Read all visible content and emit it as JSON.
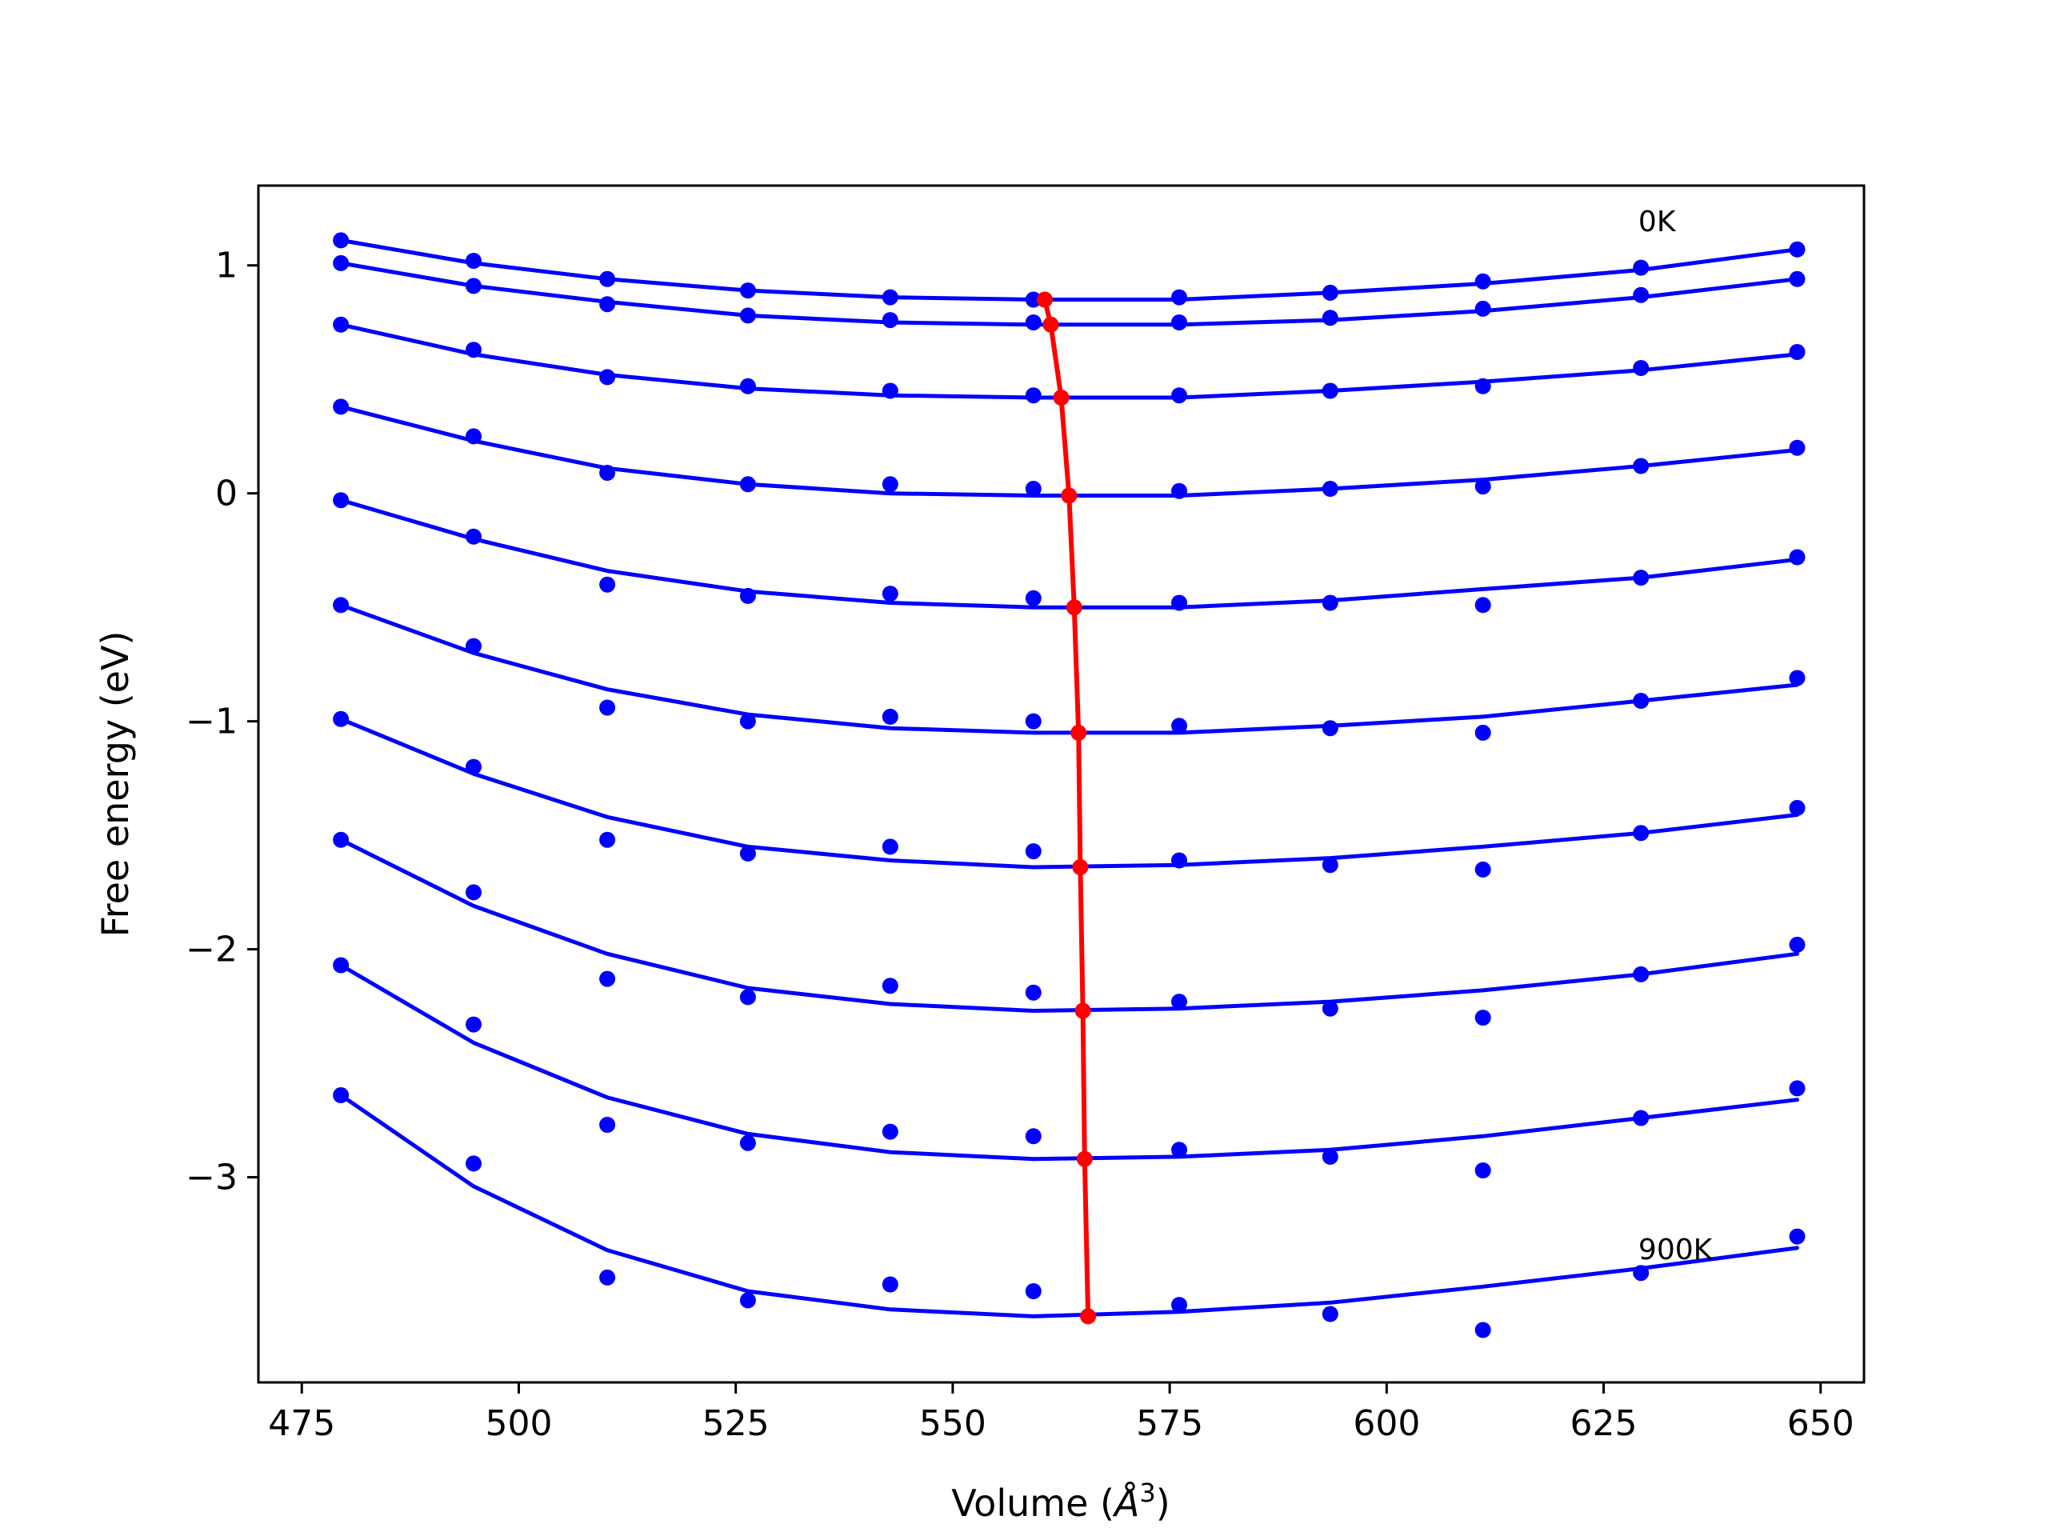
{
  "chart_data": {
    "type": "line",
    "title": "",
    "xlabel": "Volume (Å³)",
    "xlabel_base": "Volume (",
    "xlabel_unit": "Å",
    "xlabel_exp": "3",
    "xlabel_close": ")",
    "ylabel": "Free energy (eV)",
    "xlim": [
      470,
      655
    ],
    "ylim": [
      -3.9,
      1.35
    ],
    "xticks": [
      475,
      500,
      525,
      550,
      575,
      600,
      625,
      650
    ],
    "yticks": [
      -3,
      -2,
      -1,
      0,
      1
    ],
    "xtick_labels": [
      "475",
      "500",
      "525",
      "550",
      "575",
      "600",
      "625",
      "650"
    ],
    "ytick_labels": [
      "−3",
      "−2",
      "−1",
      "0",
      "1"
    ],
    "grid": false,
    "colors": {
      "series": "#0000ff",
      "minimum_path": "#ff0000",
      "axes": "#000000"
    },
    "annotations": [
      {
        "text": "0K",
        "x": 629,
        "y": 1.15
      },
      {
        "text": "900K",
        "x": 629,
        "y": -3.36
      }
    ],
    "volumes": [
      479.5,
      494.8,
      510.2,
      526.4,
      542.8,
      559.3,
      576.1,
      593.5,
      611.1,
      629.3,
      647.3
    ],
    "series": [
      {
        "label": "0K",
        "points": [
          1.11,
          1.02,
          0.94,
          0.89,
          0.86,
          0.85,
          0.86,
          0.88,
          0.93,
          0.99,
          1.07
        ],
        "fit": [
          1.11,
          1.01,
          0.94,
          0.89,
          0.86,
          0.85,
          0.85,
          0.88,
          0.92,
          0.98,
          1.07
        ]
      },
      {
        "points": [
          1.01,
          0.91,
          0.83,
          0.78,
          0.76,
          0.75,
          0.75,
          0.77,
          0.81,
          0.87,
          0.94
        ],
        "fit": [
          1.01,
          0.91,
          0.84,
          0.78,
          0.75,
          0.74,
          0.74,
          0.76,
          0.8,
          0.86,
          0.94
        ]
      },
      {
        "points": [
          0.74,
          0.63,
          0.51,
          0.47,
          0.45,
          0.43,
          0.43,
          0.45,
          0.47,
          0.55,
          0.62
        ],
        "fit": [
          0.74,
          0.61,
          0.52,
          0.46,
          0.43,
          0.42,
          0.42,
          0.45,
          0.49,
          0.54,
          0.61
        ]
      },
      {
        "points": [
          0.38,
          0.25,
          0.09,
          0.04,
          0.04,
          0.02,
          0.01,
          0.02,
          0.03,
          0.12,
          0.2
        ],
        "fit": [
          0.38,
          0.23,
          0.11,
          0.04,
          0.0,
          -0.01,
          -0.01,
          0.02,
          0.06,
          0.12,
          0.19
        ]
      },
      {
        "points": [
          -0.03,
          -0.19,
          -0.4,
          -0.45,
          -0.44,
          -0.46,
          -0.48,
          -0.48,
          -0.49,
          -0.37,
          -0.28
        ],
        "fit": [
          -0.03,
          -0.2,
          -0.34,
          -0.43,
          -0.48,
          -0.5,
          -0.5,
          -0.47,
          -0.42,
          -0.37,
          -0.29
        ]
      },
      {
        "points": [
          -0.49,
          -0.67,
          -0.94,
          -1.0,
          -0.98,
          -1.0,
          -1.02,
          -1.03,
          -1.05,
          -0.91,
          -0.81
        ],
        "fit": [
          -0.49,
          -0.7,
          -0.86,
          -0.97,
          -1.03,
          -1.05,
          -1.05,
          -1.02,
          -0.98,
          -0.91,
          -0.84
        ]
      },
      {
        "points": [
          -0.99,
          -1.2,
          -1.52,
          -1.58,
          -1.55,
          -1.57,
          -1.61,
          -1.63,
          -1.65,
          -1.49,
          -1.38
        ],
        "fit": [
          -0.99,
          -1.23,
          -1.42,
          -1.55,
          -1.61,
          -1.64,
          -1.63,
          -1.6,
          -1.55,
          -1.49,
          -1.41
        ]
      },
      {
        "points": [
          -1.52,
          -1.75,
          -2.13,
          -2.21,
          -2.16,
          -2.19,
          -2.23,
          -2.26,
          -2.3,
          -2.11,
          -1.98
        ],
        "fit": [
          -1.52,
          -1.81,
          -2.02,
          -2.17,
          -2.24,
          -2.27,
          -2.26,
          -2.23,
          -2.18,
          -2.11,
          -2.02
        ]
      },
      {
        "points": [
          -2.07,
          -2.33,
          -2.77,
          -2.85,
          -2.8,
          -2.82,
          -2.88,
          -2.91,
          -2.97,
          -2.74,
          -2.61
        ],
        "fit": [
          -2.07,
          -2.41,
          -2.65,
          -2.81,
          -2.89,
          -2.92,
          -2.91,
          -2.88,
          -2.82,
          -2.74,
          -2.66
        ]
      },
      {
        "label": "900K",
        "points": [
          -2.64,
          -2.94,
          -3.44,
          -3.54,
          -3.47,
          -3.5,
          -3.56,
          -3.6,
          -3.67,
          -3.42,
          -3.26
        ],
        "fit": [
          -2.64,
          -3.04,
          -3.32,
          -3.5,
          -3.58,
          -3.61,
          -3.59,
          -3.55,
          -3.48,
          -3.4,
          -3.31
        ]
      }
    ],
    "minimum_path": {
      "x": [
        560.6,
        561.3,
        562.5,
        563.4,
        564.0,
        564.5,
        564.7,
        565.0,
        565.2,
        565.6
      ],
      "y": [
        0.85,
        0.74,
        0.42,
        -0.01,
        -0.5,
        -1.05,
        -1.64,
        -2.27,
        -2.92,
        -3.61
      ]
    }
  }
}
